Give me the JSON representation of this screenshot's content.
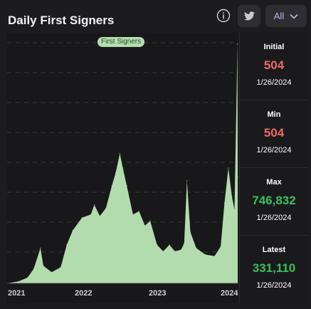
{
  "header": {
    "title": "Daily First Signers",
    "filter_label": "All"
  },
  "chart_data": {
    "type": "area",
    "legend": "First Signers",
    "x_ticks": [
      "2021",
      "2022",
      "2023",
      "2024"
    ],
    "color": "#b3dcae",
    "grid": true,
    "ylim": [
      0,
      760000
    ],
    "series": [
      {
        "name": "First Signers",
        "points": [
          [
            "2020-11-18",
            504
          ],
          [
            "2021-01-15",
            6000
          ],
          [
            "2021-03-01",
            18000
          ],
          [
            "2021-04-01",
            45000
          ],
          [
            "2021-05-05",
            110000
          ],
          [
            "2021-05-20",
            55000
          ],
          [
            "2021-07-01",
            35000
          ],
          [
            "2021-08-15",
            50000
          ],
          [
            "2021-09-15",
            120000
          ],
          [
            "2021-10-15",
            165000
          ],
          [
            "2021-12-01",
            205000
          ],
          [
            "2022-01-15",
            215000
          ],
          [
            "2022-02-01",
            245000
          ],
          [
            "2022-03-01",
            210000
          ],
          [
            "2022-04-01",
            235000
          ],
          [
            "2022-05-01",
            305000
          ],
          [
            "2022-05-20",
            345000
          ],
          [
            "2022-06-10",
            405000
          ],
          [
            "2022-06-25",
            360000
          ],
          [
            "2022-07-15",
            305000
          ],
          [
            "2022-08-15",
            215000
          ],
          [
            "2022-09-15",
            225000
          ],
          [
            "2022-10-15",
            180000
          ],
          [
            "2022-11-10",
            195000
          ],
          [
            "2022-12-15",
            120000
          ],
          [
            "2023-01-15",
            100000
          ],
          [
            "2023-02-15",
            120000
          ],
          [
            "2023-03-15",
            100000
          ],
          [
            "2023-04-15",
            105000
          ],
          [
            "2023-05-01",
            125000
          ],
          [
            "2023-05-15",
            320000
          ],
          [
            "2023-06-01",
            160000
          ],
          [
            "2023-07-01",
            110000
          ],
          [
            "2023-08-15",
            90000
          ],
          [
            "2023-10-01",
            85000
          ],
          [
            "2023-11-01",
            115000
          ],
          [
            "2023-11-20",
            250000
          ],
          [
            "2023-12-10",
            360000
          ],
          [
            "2023-12-28",
            270000
          ],
          [
            "2024-01-10",
            230000
          ],
          [
            "2024-01-25",
            746832
          ],
          [
            "2024-01-26",
            331110
          ]
        ]
      }
    ]
  },
  "stats": [
    {
      "label": "Initial",
      "value": "504",
      "date": "1/26/2024",
      "color": "#ef6a6a"
    },
    {
      "label": "Min",
      "value": "504",
      "date": "1/26/2024",
      "color": "#ef6a6a"
    },
    {
      "label": "Max",
      "value": "746,832",
      "date": "1/26/2024",
      "color": "#37c15a"
    },
    {
      "label": "Latest",
      "value": "331,110",
      "date": "1/26/2024",
      "color": "#37c15a"
    }
  ],
  "icons": {
    "info": "info-icon",
    "twitter": "twitter-icon",
    "dropdown": "chevron-down-icon"
  }
}
